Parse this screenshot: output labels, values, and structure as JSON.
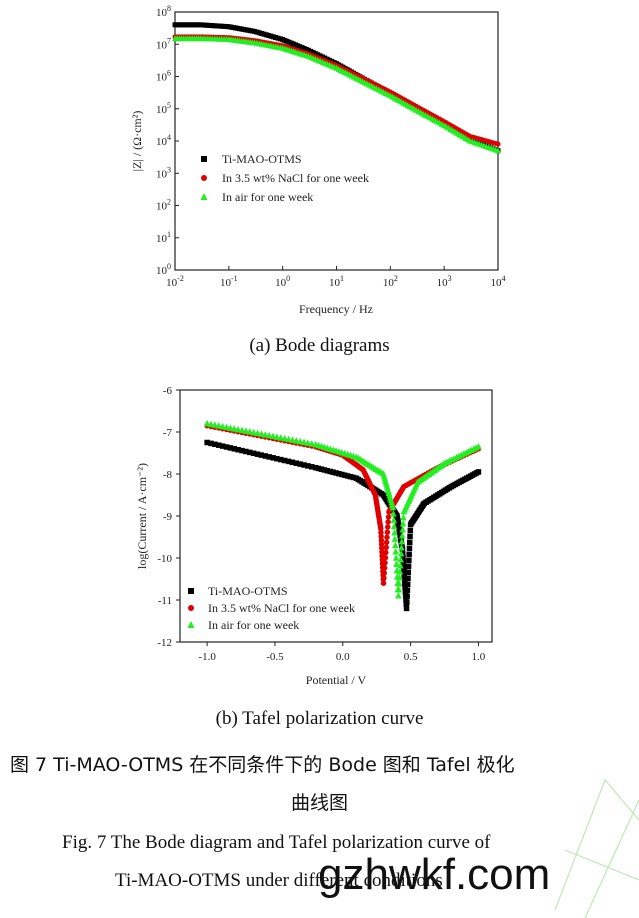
{
  "chart_data": [
    {
      "type": "scatter",
      "caption": "(a) Bode diagrams",
      "xlabel": "Frequency / Hz",
      "ylabel": "|Z| / (Ω·cm²)",
      "xscale": "log",
      "yscale": "log",
      "xlim": [
        0.01,
        10000
      ],
      "ylim": [
        1,
        100000000
      ],
      "x_ticks": [
        "10-2",
        "10-1",
        "100",
        "101",
        "102",
        "103",
        "104"
      ],
      "y_ticks": [
        "100",
        "101",
        "102",
        "103",
        "104",
        "105",
        "106",
        "107",
        "108"
      ],
      "legend_position": "middle-left",
      "series": [
        {
          "name": "Ti-MAO-OTMS",
          "color": "#000000",
          "marker": "square",
          "x": [
            0.01,
            0.03,
            0.1,
            0.3,
            1,
            3,
            10,
            30,
            100,
            300,
            1000,
            3000,
            10000
          ],
          "y": [
            40000000,
            40000000,
            35000000,
            25000000,
            14000000,
            6500000,
            2500000,
            900000,
            300000,
            100000,
            33000,
            11000,
            5000
          ]
        },
        {
          "name": "In 3.5 wt% NaCl for one week",
          "color": "#e00000",
          "marker": "circle",
          "x": [
            0.01,
            0.03,
            0.1,
            0.3,
            1,
            3,
            10,
            30,
            100,
            300,
            1000,
            3000,
            10000
          ],
          "y": [
            17000000,
            17000000,
            16000000,
            13000000,
            9000000,
            5000000,
            2200000,
            900000,
            330000,
            120000,
            40000,
            14000,
            8000
          ]
        },
        {
          "name": "In air for one week",
          "color": "#22ee22",
          "marker": "triangle",
          "x": [
            0.01,
            0.03,
            0.1,
            0.3,
            1,
            3,
            10,
            30,
            100,
            300,
            1000,
            3000,
            10000
          ],
          "y": [
            15000000,
            15000000,
            14000000,
            11000000,
            7500000,
            4200000,
            1800000,
            700000,
            250000,
            90000,
            30000,
            10000,
            5000
          ]
        }
      ]
    },
    {
      "type": "scatter",
      "caption": "(b) Tafel polarization curve",
      "xlabel": "Potential / V",
      "ylabel": "log(Current / A·cm⁻²)",
      "xlim": [
        -1.2,
        1.1
      ],
      "ylim": [
        -12,
        -6
      ],
      "x_ticks": [
        "-1.0",
        "-0.5",
        "0.0",
        "0.5",
        "1.0"
      ],
      "y_ticks": [
        "-6",
        "-7",
        "-8",
        "-9",
        "-10",
        "-11",
        "-12"
      ],
      "legend_position": "bottom-left",
      "series": [
        {
          "name": "Ti-MAO-OTMS",
          "color": "#000000",
          "marker": "square",
          "corrosion_potential": 0.47,
          "corrosion_current_min": -11.2,
          "x": [
            -1.0,
            -0.6,
            -0.2,
            0.1,
            0.3,
            0.4,
            0.44,
            0.47,
            0.5,
            0.6,
            0.8,
            1.0
          ],
          "y": [
            -7.25,
            -7.55,
            -7.85,
            -8.1,
            -8.5,
            -9.0,
            -9.8,
            -11.2,
            -9.2,
            -8.7,
            -8.3,
            -7.95
          ]
        },
        {
          "name": "In 3.5 wt% NaCl for one week",
          "color": "#e00000",
          "marker": "circle",
          "corrosion_potential": 0.3,
          "corrosion_current_min": -10.6,
          "x": [
            -1.0,
            -0.6,
            -0.2,
            0.0,
            0.15,
            0.24,
            0.28,
            0.3,
            0.34,
            0.45,
            0.7,
            1.0
          ],
          "y": [
            -6.85,
            -7.1,
            -7.35,
            -7.55,
            -7.9,
            -8.5,
            -9.3,
            -10.6,
            -8.9,
            -8.3,
            -7.85,
            -7.4
          ]
        },
        {
          "name": "In air for one week",
          "color": "#22ee22",
          "marker": "triangle",
          "corrosion_potential": 0.41,
          "corrosion_current_min": -10.9,
          "x": [
            -1.0,
            -0.6,
            -0.2,
            0.1,
            0.3,
            0.37,
            0.41,
            0.45,
            0.55,
            0.75,
            1.0
          ],
          "y": [
            -6.8,
            -7.05,
            -7.3,
            -7.6,
            -8.0,
            -8.8,
            -10.9,
            -8.9,
            -8.2,
            -7.75,
            -7.35
          ]
        }
      ]
    }
  ],
  "captions": {
    "a": "(a) Bode diagrams",
    "b": "(b) Tafel polarization curve",
    "zh_line1": "图 7    Ti-MAO-OTMS 在不同条件下的 Bode 图和 Tafel 极化",
    "zh_line2": "曲线图",
    "en_line1": "Fig. 7    The Bode diagram and Tafel polarization curve of",
    "en_line2": "Ti-MAO-OTMS under different conditions"
  },
  "watermark": "gzhwkf.com"
}
